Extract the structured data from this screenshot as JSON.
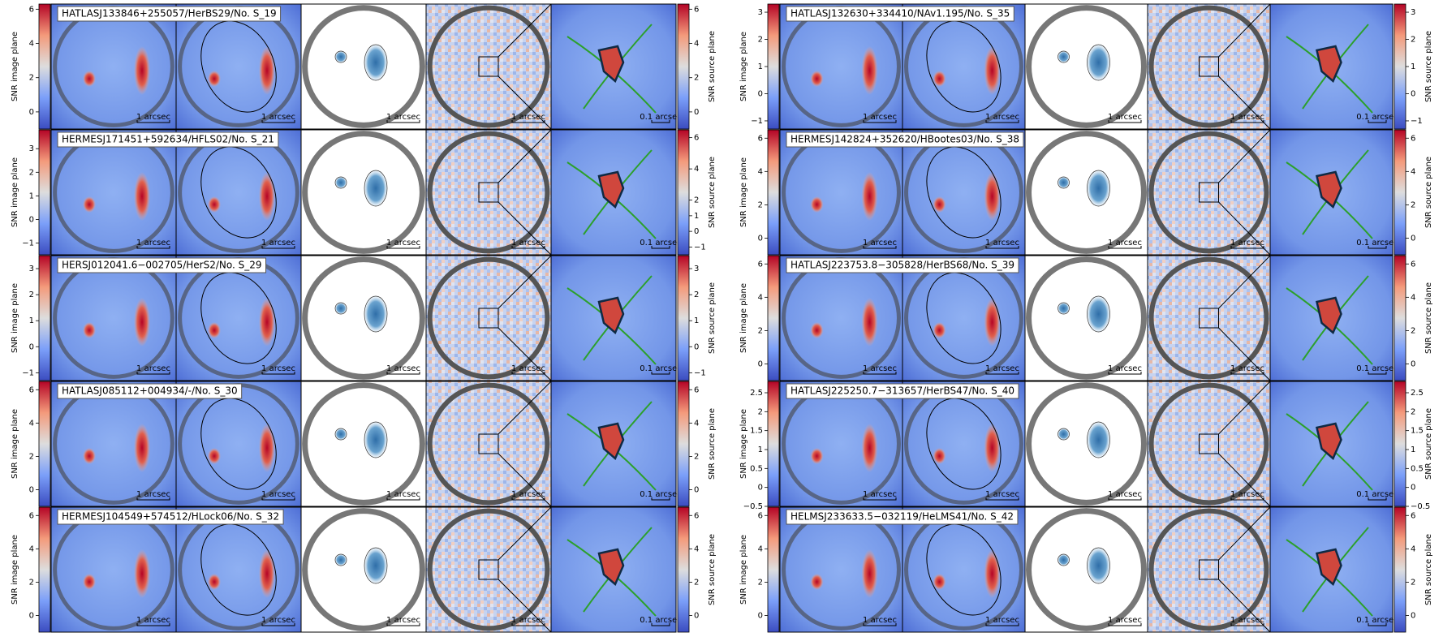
{
  "image_axis_label": "SNR image plane",
  "source_axis_label": "SNR source plane",
  "scale_label": "1 arcsec",
  "zoom_scale_label": "0.1 arcsec",
  "panels": [
    {
      "label": "HATLASJ133846+255057/HerBS29/No. S_19",
      "image_lim": [
        -1,
        6.3
      ],
      "image_ticks": [
        0,
        2,
        4,
        6
      ],
      "source_lim": [
        -1,
        6.3
      ],
      "source_ticks": [
        0,
        2,
        4,
        6
      ]
    },
    {
      "label": "HERMESJ171451+592634/HFLS02/No. S_21",
      "image_lim": [
        -1.5,
        3.8
      ],
      "image_ticks": [
        {
          "value": -1,
          "label": "−1"
        },
        0,
        1,
        2,
        3
      ],
      "source_lim": [
        -1.5,
        6.5
      ],
      "source_ticks": [
        {
          "value": -1,
          "label": "−1"
        },
        0,
        1,
        2,
        4,
        6
      ]
    },
    {
      "label": "HERSJ012041.6−002705/HerS2/No. S_29",
      "image_lim": [
        -1.3,
        3.5
      ],
      "image_ticks": [
        {
          "value": -1,
          "label": "−1"
        },
        0,
        1,
        2,
        3
      ],
      "source_lim": [
        -1.3,
        3.5
      ],
      "source_ticks": [
        {
          "value": -1,
          "label": "−1"
        },
        0,
        1,
        2,
        3
      ]
    },
    {
      "label": "HATLASJ085112+004934/-/No. S_30",
      "image_lim": [
        -1,
        6.5
      ],
      "image_ticks": [
        0,
        2,
        4,
        6
      ],
      "source_lim": [
        -1,
        6.5
      ],
      "source_ticks": [
        0,
        2,
        4,
        6
      ]
    },
    {
      "label": "HERMESJ104549+574512/HLock06/No. S_32",
      "image_lim": [
        -1,
        6.5
      ],
      "image_ticks": [
        0,
        2,
        4,
        6
      ],
      "source_lim": [
        -1,
        6.5
      ],
      "source_ticks": [
        0,
        2,
        4,
        6
      ]
    },
    {
      "label": "HATLASJ132630+334410/NAv1.195/No. S_35",
      "image_lim": [
        -1.3,
        3.3
      ],
      "image_ticks": [
        {
          "value": -1,
          "label": "−1"
        },
        0,
        1,
        2,
        3
      ],
      "source_lim": [
        -1.3,
        3.3
      ],
      "source_ticks": [
        {
          "value": -1,
          "label": "−1"
        },
        0,
        1,
        2,
        3
      ]
    },
    {
      "label": "HERMESJ142824+352620/HBootes03/No. S_38",
      "image_lim": [
        -1,
        6.5
      ],
      "image_ticks": [
        0,
        2,
        4,
        6
      ],
      "source_lim": [
        -1,
        6.5
      ],
      "source_ticks": [
        0,
        2,
        4,
        6
      ]
    },
    {
      "label": "HATLASJ223753.8−305828/HerBS68/No. S_39",
      "image_lim": [
        -1,
        6.5
      ],
      "image_ticks": [
        0,
        2,
        4,
        6
      ],
      "source_lim": [
        -1,
        6.5
      ],
      "source_ticks": [
        0,
        2,
        4,
        6
      ]
    },
    {
      "label": "HATLASJ225250.7−313657/HerBS47/No. S_40",
      "image_lim": [
        -0.5,
        2.8
      ],
      "image_ticks": [
        {
          "value": -0.5,
          "label": "−0.5"
        },
        0,
        0.5,
        1,
        1.5,
        2,
        2.5
      ],
      "source_lim": [
        -0.5,
        2.8
      ],
      "source_ticks": [
        {
          "value": -0.5,
          "label": "−0.5"
        },
        0,
        0.5,
        1,
        1.5,
        2,
        2.5
      ]
    },
    {
      "label": "HELMSJ233633.5−032119/HeLMS41/No. S_42",
      "image_lim": [
        -1,
        6.5
      ],
      "image_ticks": [
        0,
        2,
        4,
        6
      ],
      "source_lim": [
        -1,
        6.5
      ],
      "source_ticks": [
        0,
        2,
        4,
        6
      ]
    }
  ]
}
